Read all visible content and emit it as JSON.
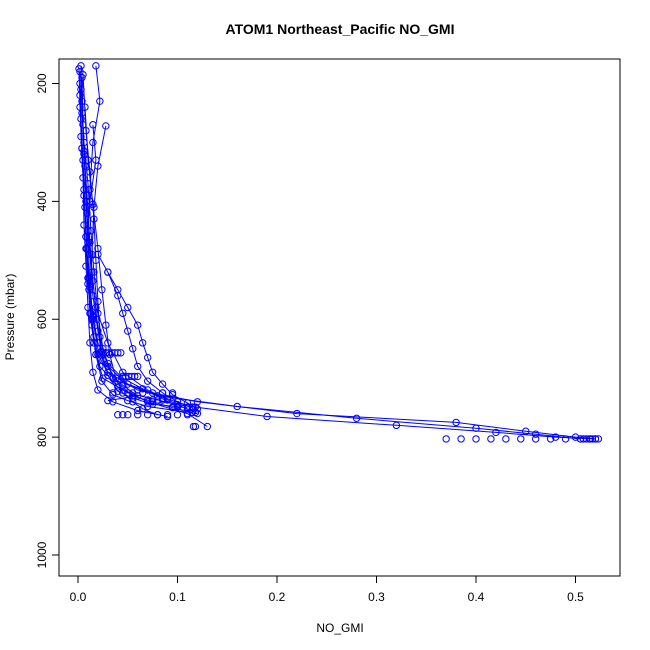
{
  "chart_data": {
    "type": "scatter",
    "title": "ATOM1 Northeast_Pacific NO_GMI",
    "xlabel": "NO_GMI",
    "ylabel": "Pressure (mbar)",
    "xlim": [
      0.0,
      0.53
    ],
    "ylim": [
      1030,
      160
    ],
    "y_reversed": true,
    "x_ticks": [
      "0.0",
      "0.1",
      "0.2",
      "0.3",
      "0.4",
      "0.5"
    ],
    "x_tick_values": [
      0.0,
      0.1,
      0.2,
      0.3,
      0.4,
      0.5
    ],
    "y_ticks": [
      "200",
      "400",
      "600",
      "800",
      "1000"
    ],
    "y_tick_values": [
      200,
      400,
      600,
      800,
      1000
    ],
    "grid": false,
    "marker": "open-circle",
    "color": "#0000ff",
    "series": [
      {
        "x": [
          0.003,
          0.004,
          0.006,
          0.008,
          0.01,
          0.012,
          0.015,
          0.02,
          0.03,
          0.06,
          0.12,
          0.22,
          0.38,
          0.45,
          0.5,
          0.52
        ],
        "y": [
          170,
          250,
          320,
          400,
          470,
          540,
          600,
          650,
          690,
          720,
          740,
          760,
          775,
          790,
          800,
          803
        ]
      },
      {
        "x": [
          0.002,
          0.003,
          0.005,
          0.007,
          0.009,
          0.011,
          0.014,
          0.018,
          0.025,
          0.05,
          0.1,
          0.19,
          0.32,
          0.42,
          0.48,
          0.515
        ],
        "y": [
          180,
          260,
          330,
          410,
          480,
          550,
          610,
          660,
          700,
          725,
          745,
          765,
          780,
          792,
          800,
          803
        ]
      },
      {
        "x": [
          0.004,
          0.005,
          0.007,
          0.009,
          0.012,
          0.015,
          0.02,
          0.025,
          0.04,
          0.08,
          0.16,
          0.28,
          0.4,
          0.46,
          0.505
        ],
        "y": [
          190,
          270,
          340,
          420,
          490,
          560,
          620,
          670,
          705,
          730,
          748,
          768,
          785,
          795,
          803
        ]
      },
      {
        "x": [
          0.001,
          0.002,
          0.004,
          0.006,
          0.008,
          0.01,
          0.012,
          0.016,
          0.022,
          0.04,
          0.07,
          0.11,
          0.13
        ],
        "y": [
          175,
          240,
          310,
          390,
          460,
          530,
          590,
          640,
          680,
          715,
          740,
          760,
          782
        ]
      },
      {
        "x": [
          0.005,
          0.008,
          0.012,
          0.016,
          0.018,
          0.02,
          0.022,
          0.03,
          0.05,
          0.09,
          0.115
        ],
        "y": [
          185,
          280,
          350,
          430,
          500,
          570,
          630,
          680,
          710,
          735,
          750
        ]
      },
      {
        "x": [
          0.018,
          0.022,
          0.015,
          0.012,
          0.01,
          0.014,
          0.018,
          0.03,
          0.045,
          0.07,
          0.1,
          0.118
        ],
        "y": [
          170,
          230,
          300,
          380,
          450,
          520,
          580,
          640,
          690,
          720,
          745,
          758
        ]
      },
      {
        "x": [
          0.002,
          0.003,
          0.005,
          0.006,
          0.008,
          0.01,
          0.012,
          0.015,
          0.02,
          0.035,
          0.06,
          0.09
        ],
        "y": [
          200,
          290,
          360,
          440,
          510,
          580,
          640,
          690,
          720,
          740,
          755,
          765
        ]
      },
      {
        "x": [
          0.003,
          0.006,
          0.01,
          0.013,
          0.016,
          0.02,
          0.025,
          0.035,
          0.055,
          0.075,
          0.095,
          0.115
        ],
        "y": [
          210,
          300,
          370,
          450,
          520,
          590,
          650,
          700,
          730,
          740,
          750,
          758
        ]
      },
      {
        "x": [
          0.002,
          0.004,
          0.006,
          0.008,
          0.011,
          0.014,
          0.018,
          0.024,
          0.035,
          0.05,
          0.07,
          0.12
        ],
        "y": [
          220,
          310,
          380,
          460,
          530,
          600,
          660,
          705,
          728,
          738,
          748,
          760
        ]
      },
      {
        "x": [
          0.015,
          0.018,
          0.012,
          0.008,
          0.01,
          0.013,
          0.016,
          0.02,
          0.03,
          0.045,
          0.06,
          0.03
        ],
        "y": [
          270,
          330,
          400,
          480,
          540,
          590,
          630,
          660,
          690,
          712,
          730,
          738
        ]
      },
      {
        "x": [
          0.028,
          0.02,
          0.016,
          0.014,
          0.012,
          0.015,
          0.02,
          0.03,
          0.045,
          0.065,
          0.085,
          0.1
        ],
        "y": [
          272,
          340,
          410,
          490,
          545,
          595,
          640,
          675,
          700,
          718,
          735,
          748
        ]
      },
      {
        "x": [
          0.004,
          0.006,
          0.009,
          0.012,
          0.015,
          0.019,
          0.024,
          0.03,
          0.04,
          0.055,
          0.075,
          0.11
        ],
        "y": [
          230,
          315,
          390,
          470,
          535,
          600,
          655,
          695,
          722,
          734,
          744,
          750
        ]
      },
      {
        "x": [
          0.007,
          0.01,
          0.015,
          0.02,
          0.024,
          0.028,
          0.032,
          0.038,
          0.045,
          0.055,
          0.065,
          0.08
        ],
        "y": [
          240,
          330,
          405,
          480,
          550,
          610,
          660,
          700,
          725,
          740,
          752,
          762
        ]
      },
      {
        "x": [
          0.02,
          0.03,
          0.04,
          0.045,
          0.05,
          0.055,
          0.06,
          0.07,
          0.085,
          0.1,
          0.115
        ],
        "y": [
          490,
          520,
          560,
          590,
          620,
          650,
          680,
          705,
          725,
          740,
          750
        ]
      },
      {
        "x": [
          0.03,
          0.04,
          0.05,
          0.06,
          0.065,
          0.07,
          0.075,
          0.085,
          0.095,
          0.11,
          0.12
        ],
        "y": [
          520,
          550,
          580,
          610,
          640,
          665,
          690,
          710,
          728,
          742,
          752
        ]
      }
    ],
    "clusters": [
      {
        "x": [
          0.022,
          0.025,
          0.028,
          0.031,
          0.034,
          0.037,
          0.04,
          0.043
        ],
        "y": [
          657,
          657,
          657,
          657,
          657,
          657,
          657,
          657
        ]
      },
      {
        "x": [
          0.045,
          0.048,
          0.051,
          0.054,
          0.057,
          0.06
        ],
        "y": [
          697,
          697,
          697,
          697,
          697,
          697
        ]
      },
      {
        "x": [
          0.035,
          0.045,
          0.055,
          0.065,
          0.075,
          0.085,
          0.095
        ],
        "y": [
          725,
          725,
          725,
          725,
          725,
          725,
          725
        ]
      },
      {
        "x": [
          0.07,
          0.075,
          0.08,
          0.085,
          0.09
        ],
        "y": [
          737,
          737,
          737,
          737,
          737
        ]
      },
      {
        "x": [
          0.095,
          0.1,
          0.105,
          0.11,
          0.115,
          0.118
        ],
        "y": [
          749,
          749,
          749,
          749,
          749,
          749
        ]
      },
      {
        "x": [
          0.116,
          0.118
        ],
        "y": [
          782,
          782
        ]
      },
      {
        "x": [
          0.37,
          0.385,
          0.4,
          0.415,
          0.43,
          0.445,
          0.46,
          0.475,
          0.49
        ],
        "y": [
          803,
          803,
          803,
          803,
          803,
          803,
          803,
          803,
          803
        ]
      },
      {
        "x": [
          0.505,
          0.508,
          0.511,
          0.514,
          0.517,
          0.52,
          0.523
        ],
        "y": [
          803,
          803,
          803,
          803,
          803,
          803,
          803
        ]
      },
      {
        "x": [
          0.04,
          0.045,
          0.05,
          0.06,
          0.07,
          0.08,
          0.09,
          0.1,
          0.11
        ],
        "y": [
          762,
          762,
          762,
          762,
          762,
          762,
          762,
          762,
          762
        ]
      }
    ]
  }
}
